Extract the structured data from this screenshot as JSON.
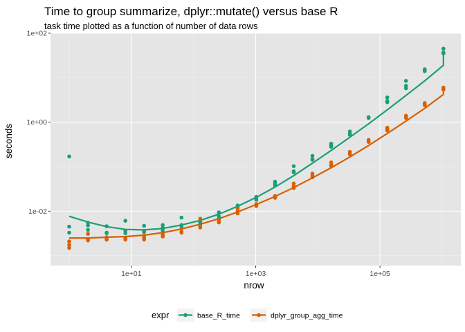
{
  "colors": {
    "panel_bg": "#e5e5e5",
    "grid_major": "#ffffff",
    "grid_minor": "#f2f2f2",
    "legend_key_bg": "#f2f2f2"
  },
  "chart_data": {
    "type": "scatter",
    "title": "Time to group summarize, dplyr::mutate() versus base R",
    "subtitle": "task time plotted as a function of number of data rows",
    "xlabel": "nrow",
    "ylabel": "seconds",
    "xscale": "log10",
    "yscale": "log10",
    "xlim": [
      0.5,
      2000000
    ],
    "ylim": [
      0.0006,
      100
    ],
    "xticks": [
      10,
      1000,
      100000
    ],
    "xtick_labels": [
      "1e+01",
      "1e+03",
      "1e+05"
    ],
    "yticks": [
      0.01,
      1,
      100
    ],
    "ytick_labels": [
      "1e-02",
      "1e+00",
      "1e+02"
    ],
    "grid": true,
    "legend": {
      "title": "expr",
      "position": "bottom"
    },
    "series": [
      {
        "name": "base_R_time",
        "color": "#1b9e77",
        "points": [
          [
            1,
            0.17
          ],
          [
            1,
            0.0045
          ],
          [
            1,
            0.0033
          ],
          [
            2,
            0.0055
          ],
          [
            2,
            0.0048
          ],
          [
            2,
            0.0038
          ],
          [
            4,
            0.0046
          ],
          [
            4,
            0.0032
          ],
          [
            4,
            0.0033
          ],
          [
            8,
            0.0061
          ],
          [
            8,
            0.0036
          ],
          [
            8,
            0.0032
          ],
          [
            16,
            0.0047
          ],
          [
            16,
            0.0034
          ],
          [
            16,
            0.0036
          ],
          [
            32,
            0.0049
          ],
          [
            32,
            0.0037
          ],
          [
            32,
            0.0042
          ],
          [
            64,
            0.0072
          ],
          [
            64,
            0.0049
          ],
          [
            64,
            0.0045
          ],
          [
            128,
            0.0057
          ],
          [
            128,
            0.0054
          ],
          [
            128,
            0.0051
          ],
          [
            256,
            0.0094
          ],
          [
            256,
            0.0077
          ],
          [
            256,
            0.0069
          ],
          [
            512,
            0.0135
          ],
          [
            512,
            0.0124
          ],
          [
            512,
            0.0118
          ],
          [
            1024,
            0.021
          ],
          [
            1024,
            0.019
          ],
          [
            1024,
            0.018
          ],
          [
            2048,
            0.046
          ],
          [
            2048,
            0.041
          ],
          [
            2048,
            0.038
          ],
          [
            4096,
            0.103
          ],
          [
            4096,
            0.079
          ],
          [
            4096,
            0.075
          ],
          [
            8192,
            0.175
          ],
          [
            8192,
            0.148
          ],
          [
            8192,
            0.143
          ],
          [
            16384,
            0.33
          ],
          [
            16384,
            0.3
          ],
          [
            16384,
            0.28
          ],
          [
            32768,
            0.62
          ],
          [
            32768,
            0.55
          ],
          [
            32768,
            0.52
          ],
          [
            65536,
            1.3
          ],
          [
            65536,
            1.28
          ],
          [
            65536,
            1.25
          ],
          [
            131072,
            3.6
          ],
          [
            131072,
            3.0
          ],
          [
            131072,
            2.8
          ],
          [
            262144,
            8.5
          ],
          [
            262144,
            6.6
          ],
          [
            262144,
            5.8
          ],
          [
            524288,
            15.5
          ],
          [
            524288,
            14.8
          ],
          [
            524288,
            14.0
          ],
          [
            1048576,
            45
          ],
          [
            1048576,
            37
          ],
          [
            1048576,
            35
          ]
        ],
        "fit": [
          [
            1,
            0.0077
          ],
          [
            2,
            0.0057
          ],
          [
            4,
            0.0045
          ],
          [
            8,
            0.0039
          ],
          [
            16,
            0.0038
          ],
          [
            32,
            0.0041
          ],
          [
            64,
            0.0049
          ],
          [
            128,
            0.0062
          ],
          [
            256,
            0.0086
          ],
          [
            512,
            0.0129
          ],
          [
            1024,
            0.0205
          ],
          [
            2048,
            0.035
          ],
          [
            4096,
            0.063
          ],
          [
            8192,
            0.12
          ],
          [
            16384,
            0.232
          ],
          [
            32768,
            0.46
          ],
          [
            65536,
            0.92
          ],
          [
            131072,
            1.9
          ],
          [
            262144,
            4.0
          ],
          [
            524288,
            8.5
          ],
          [
            1048576,
            19.0
          ],
          [
            1048576,
            40
          ]
        ]
      },
      {
        "name": "dplyr_group_agg_time",
        "color": "#d95f02",
        "points": [
          [
            1,
            0.0021
          ],
          [
            1,
            0.00175
          ],
          [
            1,
            0.0015
          ],
          [
            2,
            0.0023
          ],
          [
            2,
            0.0022
          ],
          [
            2,
            0.0031
          ],
          [
            4,
            0.0024
          ],
          [
            4,
            0.0023
          ],
          [
            4,
            0.0026
          ],
          [
            8,
            0.0023
          ],
          [
            8,
            0.0024
          ],
          [
            8,
            0.0025
          ],
          [
            16,
            0.0025
          ],
          [
            16,
            0.0023
          ],
          [
            16,
            0.0028
          ],
          [
            32,
            0.0027
          ],
          [
            32,
            0.0028
          ],
          [
            32,
            0.003
          ],
          [
            64,
            0.0034
          ],
          [
            64,
            0.0033
          ],
          [
            64,
            0.0035
          ],
          [
            128,
            0.0068
          ],
          [
            128,
            0.0043
          ],
          [
            128,
            0.0046
          ],
          [
            256,
            0.0063
          ],
          [
            256,
            0.0057
          ],
          [
            256,
            0.0056
          ],
          [
            512,
            0.0115
          ],
          [
            512,
            0.0099
          ],
          [
            512,
            0.0089
          ],
          [
            1024,
            0.0145
          ],
          [
            1024,
            0.0138
          ],
          [
            1024,
            0.013
          ],
          [
            2048,
            0.022
          ],
          [
            2048,
            0.021
          ],
          [
            2048,
            0.02
          ],
          [
            4096,
            0.042
          ],
          [
            4096,
            0.036
          ],
          [
            4096,
            0.033
          ],
          [
            8192,
            0.07
          ],
          [
            8192,
            0.063
          ],
          [
            8192,
            0.058
          ],
          [
            16384,
            0.125
          ],
          [
            16384,
            0.11
          ],
          [
            16384,
            0.104
          ],
          [
            32768,
            0.215
          ],
          [
            32768,
            0.2
          ],
          [
            32768,
            0.19
          ],
          [
            65536,
            0.4
          ],
          [
            65536,
            0.38
          ],
          [
            65536,
            0.36
          ],
          [
            131072,
            0.75
          ],
          [
            131072,
            0.7
          ],
          [
            131072,
            0.65
          ],
          [
            262144,
            1.4
          ],
          [
            262144,
            1.3
          ],
          [
            262144,
            1.25
          ],
          [
            524288,
            2.7
          ],
          [
            524288,
            2.5
          ],
          [
            524288,
            2.4
          ],
          [
            1048576,
            6.0
          ],
          [
            1048576,
            5.8
          ],
          [
            1048576,
            5.4
          ]
        ],
        "fit": [
          [
            1,
            0.0025
          ],
          [
            2,
            0.0025
          ],
          [
            4,
            0.0026
          ],
          [
            8,
            0.0027
          ],
          [
            16,
            0.0029
          ],
          [
            32,
            0.0033
          ],
          [
            64,
            0.004
          ],
          [
            128,
            0.0051
          ],
          [
            256,
            0.0068
          ],
          [
            512,
            0.0096
          ],
          [
            1024,
            0.0142
          ],
          [
            2048,
            0.0215
          ],
          [
            4096,
            0.034
          ],
          [
            8192,
            0.056
          ],
          [
            16384,
            0.095
          ],
          [
            32768,
            0.166
          ],
          [
            65536,
            0.3
          ],
          [
            131072,
            0.56
          ],
          [
            262144,
            1.06
          ],
          [
            524288,
            2.05
          ],
          [
            1048576,
            4.2
          ],
          [
            1048576,
            6.2
          ]
        ]
      }
    ]
  }
}
